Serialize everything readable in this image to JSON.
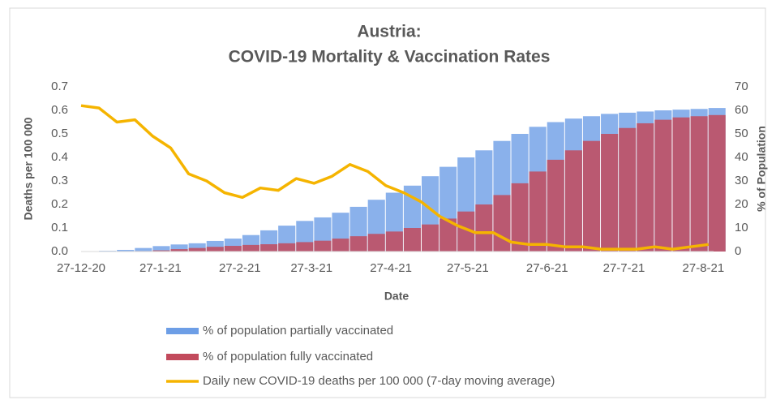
{
  "chart_data": {
    "type": "bar-line",
    "title": [
      "Austria:",
      "COVID-19 Mortality & Vaccination Rates"
    ],
    "x_label": "Date",
    "y_label": "Deaths per 100 000",
    "y2_label": "% of Population",
    "legend": "bottom",
    "grid": false,
    "xlim": [
      "2020-12-27",
      "2021-08-31"
    ],
    "xticks": [
      {
        "value": "2020-12-27",
        "label": "27-12-20"
      },
      {
        "value": "2021-01-27",
        "label": "27-1-21"
      },
      {
        "value": "2021-02-27",
        "label": "27-2-21"
      },
      {
        "value": "2021-03-27",
        "label": "27-3-21"
      },
      {
        "value": "2021-04-27",
        "label": "27-4-21"
      },
      {
        "value": "2021-05-27",
        "label": "27-5-21"
      },
      {
        "value": "2021-06-27",
        "label": "27-6-21"
      },
      {
        "value": "2021-07-27",
        "label": "27-7-21"
      },
      {
        "value": "2021-08-27",
        "label": "27-8-21"
      }
    ],
    "ylim": [
      0,
      0.7
    ],
    "yticks": [
      {
        "value": 0,
        "label": "0.0"
      },
      0.1,
      0.2,
      0.3,
      0.4,
      0.5,
      0.6,
      0.7
    ],
    "y2lim": [
      0,
      70
    ],
    "y2ticks": [
      0,
      10,
      20,
      30,
      40,
      50,
      60,
      70
    ],
    "x": [
      "2020-12-27",
      "2021-01-03",
      "2021-01-10",
      "2021-01-17",
      "2021-01-24",
      "2021-01-31",
      "2021-02-07",
      "2021-02-14",
      "2021-02-21",
      "2021-02-28",
      "2021-03-07",
      "2021-03-14",
      "2021-03-21",
      "2021-03-28",
      "2021-04-04",
      "2021-04-11",
      "2021-04-18",
      "2021-04-25",
      "2021-05-02",
      "2021-05-09",
      "2021-05-16",
      "2021-05-23",
      "2021-05-30",
      "2021-06-06",
      "2021-06-13",
      "2021-06-20",
      "2021-06-27",
      "2021-07-04",
      "2021-07-11",
      "2021-07-18",
      "2021-07-25",
      "2021-08-01",
      "2021-08-08",
      "2021-08-15",
      "2021-08-22",
      "2021-08-29"
    ],
    "series": [
      {
        "name": "% of population partially vaccinated",
        "type": "bar",
        "axis": "y2",
        "color": "#6d9ee6",
        "values": [
          0,
          0.3,
          0.7,
          1.5,
          2.3,
          3,
          3.5,
          4.5,
          5.5,
          7,
          9,
          11,
          13,
          14.5,
          16.5,
          19,
          22,
          25,
          28,
          32,
          36,
          40,
          43,
          47,
          50,
          53,
          55,
          56.5,
          57.5,
          58.5,
          59,
          59.5,
          60,
          60.3,
          60.6,
          61
        ]
      },
      {
        "name": "% of population fully vaccinated",
        "type": "bar",
        "axis": "y2",
        "color": "#c24a5c",
        "values": [
          0,
          0,
          0,
          0.2,
          0.5,
          1,
          1.5,
          2,
          2.4,
          2.8,
          3.1,
          3.5,
          4,
          4.6,
          5.5,
          6.5,
          7.5,
          8.5,
          10,
          11.5,
          14,
          17,
          20,
          24,
          29,
          34,
          39,
          43,
          47,
          50,
          52.5,
          54.5,
          56,
          57,
          57.5,
          58
        ]
      },
      {
        "name": "Daily new COVID-19 deaths per 100 000 (7-day moving average)",
        "type": "line",
        "axis": "y",
        "color": "#f5b400",
        "values": [
          0.62,
          0.61,
          0.55,
          0.56,
          0.49,
          0.44,
          0.33,
          0.3,
          0.25,
          0.23,
          0.27,
          0.26,
          0.31,
          0.29,
          0.32,
          0.37,
          0.34,
          0.28,
          0.25,
          0.21,
          0.15,
          0.11,
          0.08,
          0.08,
          0.04,
          0.03,
          0.03,
          0.02,
          0.02,
          0.01,
          0.01,
          0.01,
          0.02,
          0.01,
          0.02,
          0.03
        ]
      }
    ]
  }
}
